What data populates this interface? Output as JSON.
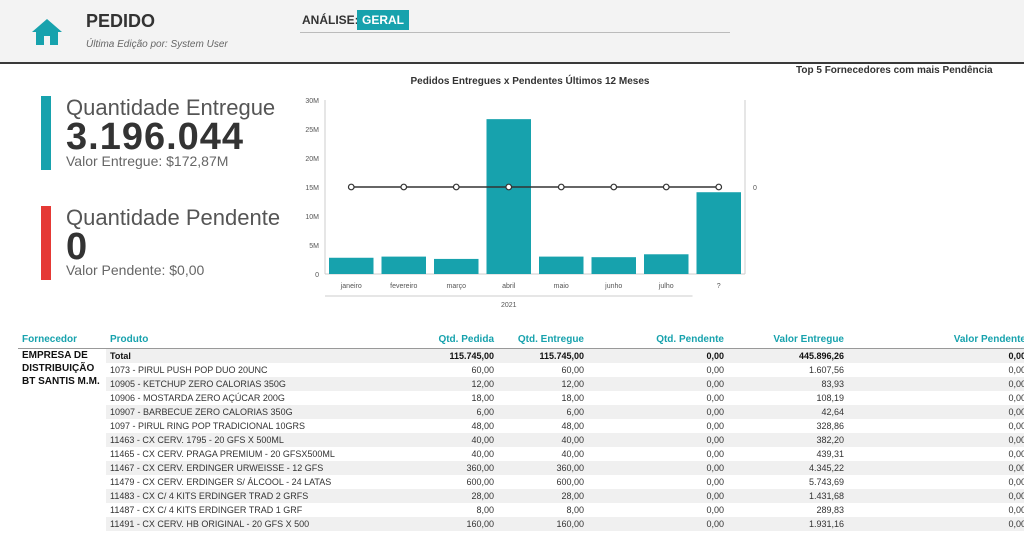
{
  "header": {
    "title": "PEDIDO",
    "subtitle": "Última Edição por: System User",
    "analise_label": "ANÁLISE:",
    "analise_value": "GERAL",
    "home_icon": "home-icon"
  },
  "kpis": {
    "entregue": {
      "title": "Quantidade Entregue",
      "value": "3.196.044",
      "sub": "Valor Entregue: $172,87M",
      "color": "#17a2ad"
    },
    "pendente": {
      "title": "Quantidade Pendente",
      "value": "0",
      "sub": "Valor Pendente: $0,00",
      "color": "#e53935"
    }
  },
  "chart_title": "Pedidos Entregues x Pendentes Últimos 12 Meses",
  "top5_title": "Top 5 Fornecedores com mais Pendência",
  "chart_data": {
    "type": "bar",
    "categories": [
      "janeiro",
      "fevereiro",
      "março",
      "abril",
      "maio",
      "junho",
      "julho",
      "?"
    ],
    "year_label": "2021",
    "series": [
      {
        "type": "bar",
        "values": [
          2.8,
          3.0,
          2.6,
          26.7,
          3.0,
          2.9,
          3.4,
          14.1
        ],
        "color": "#17a2ad"
      },
      {
        "type": "line",
        "values": [
          0,
          0,
          0,
          0,
          0,
          0,
          0,
          0
        ],
        "color": "#333333"
      }
    ],
    "y_ticks": [
      "0",
      "5M",
      "10M",
      "15M",
      "20M",
      "25M",
      "30M"
    ],
    "ylim": [
      0,
      30
    ],
    "y2_ticks": [
      "0"
    ]
  },
  "table": {
    "columns": [
      "Fornecedor",
      "Produto",
      "Qtd. Pedida",
      "Qtd. Entregue",
      "Qtd. Pendente",
      "Valor Entregue",
      "Valor Pendente"
    ],
    "supplier": "EMPRESA DE DISTRIBUIÇÃO BT SANTIS M.M.",
    "rows": [
      [
        "Total",
        "115.745,00",
        "115.745,00",
        "0,00",
        "445.896,26",
        "0,00"
      ],
      [
        "1073 - PIRUL PUSH POP DUO 20UNC",
        "60,00",
        "60,00",
        "0,00",
        "1.607,56",
        "0,00"
      ],
      [
        "10905 - KETCHUP ZERO CALORIAS 350G",
        "12,00",
        "12,00",
        "0,00",
        "83,93",
        "0,00"
      ],
      [
        "10906 - MOSTARDA ZERO AÇÚCAR 200G",
        "18,00",
        "18,00",
        "0,00",
        "108,19",
        "0,00"
      ],
      [
        "10907 - BARBECUE ZERO CALORIAS 350G",
        "6,00",
        "6,00",
        "0,00",
        "42,64",
        "0,00"
      ],
      [
        "1097 - PIRUL RING POP TRADICIONAL 10GRS",
        "48,00",
        "48,00",
        "0,00",
        "328,86",
        "0,00"
      ],
      [
        "11463 - CX CERV. 1795 - 20 GFS X 500ML",
        "40,00",
        "40,00",
        "0,00",
        "382,20",
        "0,00"
      ],
      [
        "11465 - CX CERV. PRAGA PREMIUM - 20 GFSX500ML",
        "40,00",
        "40,00",
        "0,00",
        "439,31",
        "0,00"
      ],
      [
        "11467 - CX CERV. ERDINGER URWEISSE - 12 GFS",
        "360,00",
        "360,00",
        "0,00",
        "4.345,22",
        "0,00"
      ],
      [
        "11479 - CX CERV. ERDINGER S/ ÁLCOOL - 24 LATAS",
        "600,00",
        "600,00",
        "0,00",
        "5.743,69",
        "0,00"
      ],
      [
        "11483 - CX C/ 4 KITS ERDINGER TRAD 2 GRFS",
        "28,00",
        "28,00",
        "0,00",
        "1.431,68",
        "0,00"
      ],
      [
        "11487 - CX C/ 4 KITS ERDINGER TRAD 1 GRF",
        "8,00",
        "8,00",
        "0,00",
        "289,83",
        "0,00"
      ],
      [
        "11491 - CX CERV. HB ORIGINAL - 20 GFS X 500",
        "160,00",
        "160,00",
        "0,00",
        "1.931,16",
        "0,00"
      ]
    ]
  }
}
